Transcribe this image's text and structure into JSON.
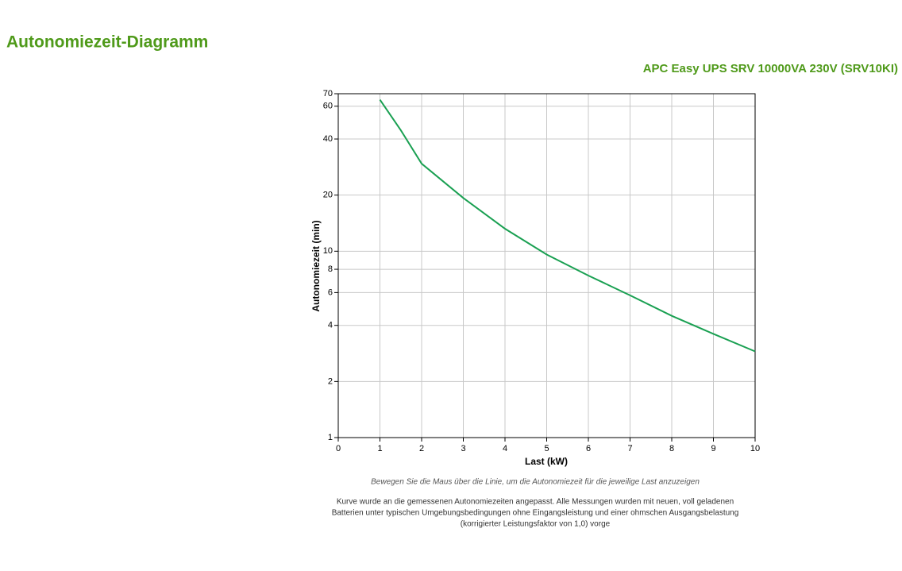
{
  "chart_data": {
    "type": "line",
    "title": "Autonomiezeit-Diagramm",
    "subtitle": "APC Easy UPS SRV 10000VA 230V (SRV10KI)",
    "x_label": "Last (kW)",
    "y_label": "Autonomiezeit (min)",
    "x": [
      1,
      1.5,
      2,
      3,
      4,
      5,
      6,
      7,
      8,
      9,
      10
    ],
    "series": [
      {
        "name": "SRV10KI",
        "color": "#1aa052",
        "values": [
          65,
          44.6,
          29.5,
          19.3,
          13.2,
          9.6,
          7.4,
          5.8,
          4.5,
          3.6,
          2.9
        ]
      }
    ],
    "xlim": [
      0,
      10
    ],
    "xticks": [
      0,
      1,
      2,
      3,
      4,
      5,
      6,
      7,
      8,
      9,
      10
    ],
    "ylim": [
      1,
      70
    ],
    "yticks": [
      1,
      2,
      4,
      6,
      8,
      10,
      20,
      40,
      60,
      70
    ],
    "ylog": true,
    "grid": true,
    "hint": "Bewegen Sie die Maus über die Linie, um die Autonomiezeit für die jeweilige Last anzuzeigen",
    "note": [
      "Kurve wurde an die gemessenen Autonomiezeiten angepasst. Alle Messungen wurden mit neuen, voll geladenen",
      "Batterien unter typischen Umgebungsbedingungen ohne Eingangsleistung und einer ohmschen Ausgangsbelastung",
      "(korrigierter Leistungsfaktor von 1,0) vorge"
    ]
  }
}
